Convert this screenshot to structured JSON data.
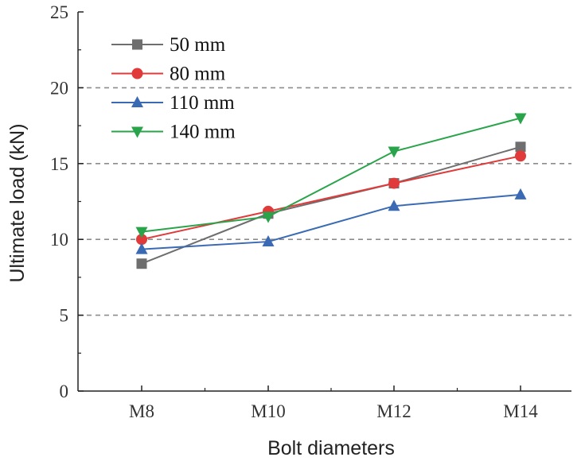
{
  "chart_data": {
    "type": "line",
    "categories": [
      "M8",
      "M10",
      "M12",
      "M14"
    ],
    "xlabel": "Bolt diameters",
    "ylabel": "Ultimate load (kN)",
    "ylim": [
      0,
      25
    ],
    "yticks": [
      "0",
      "5",
      "10",
      "15",
      "20",
      "25"
    ],
    "grid": "horizontal dashed lines at 5, 10, 15, 20",
    "legend_position": "top-left",
    "series": [
      {
        "name": "50 mm",
        "values": [
          8.4,
          11.7,
          13.7,
          16.1
        ],
        "color": "#6e6e6e",
        "marker": "square"
      },
      {
        "name": "80 mm",
        "values": [
          10.0,
          11.85,
          13.7,
          15.5
        ],
        "color": "#e03a3a",
        "marker": "circle"
      },
      {
        "name": "110 mm",
        "values": [
          9.35,
          9.85,
          12.2,
          12.95
        ],
        "color": "#3a6ab4",
        "marker": "triangle-up"
      },
      {
        "name": "140 mm",
        "values": [
          10.5,
          11.5,
          15.8,
          18.0
        ],
        "color": "#2aa44a",
        "marker": "triangle-down"
      }
    ]
  }
}
